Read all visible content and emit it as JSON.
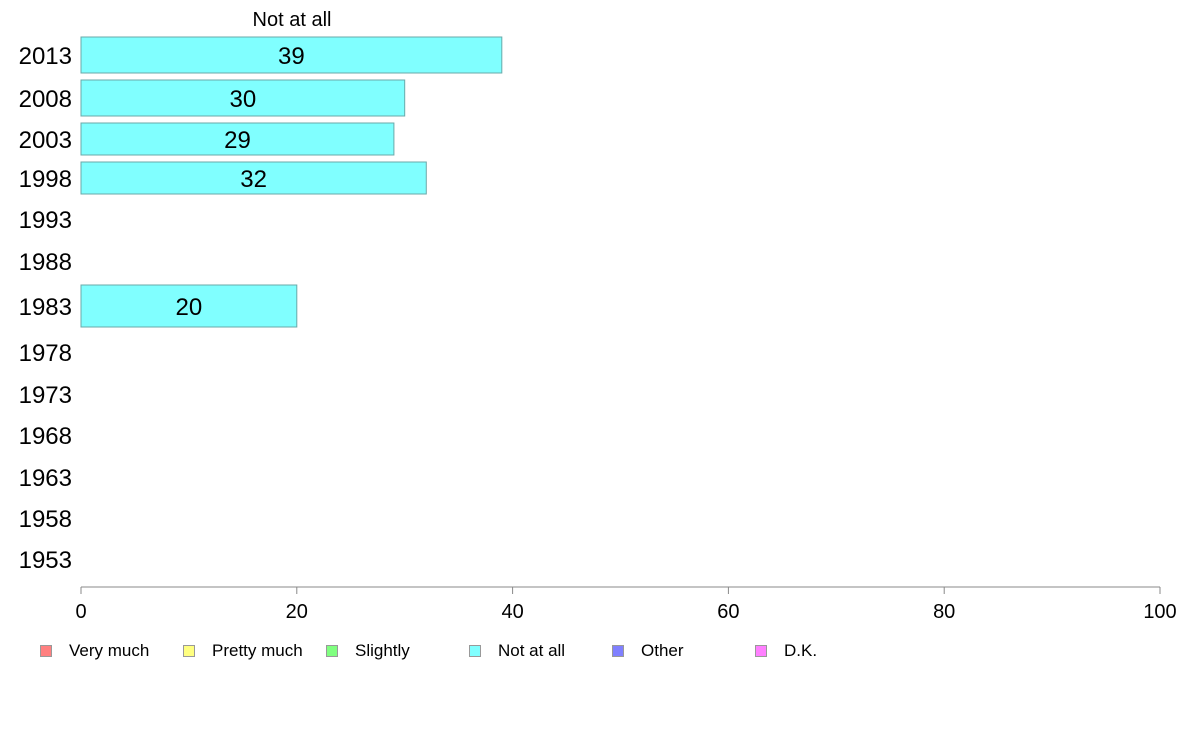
{
  "chart_data": {
    "type": "bar",
    "orientation": "horizontal",
    "series_title": "Not at all",
    "categories": [
      "2013",
      "2008",
      "2003",
      "1998",
      "1993",
      "1988",
      "1983",
      "1978",
      "1973",
      "1968",
      "1963",
      "1958",
      "1953"
    ],
    "values": [
      39,
      30,
      29,
      32,
      null,
      null,
      20,
      null,
      null,
      null,
      null,
      null,
      null
    ],
    "data_labels": [
      "39",
      "30",
      "29",
      "32",
      "",
      "",
      "20",
      "",
      "",
      "",
      "",
      "",
      ""
    ],
    "xlim": [
      0,
      100
    ],
    "xticks": [
      0,
      20,
      40,
      60,
      80,
      100
    ],
    "grid": false,
    "legend_placement": "bottom",
    "bar_color": "#80ffff",
    "legend": [
      {
        "label": "Very much",
        "color": "#ff8080"
      },
      {
        "label": "Pretty much",
        "color": "#ffff80"
      },
      {
        "label": "Slightly",
        "color": "#80ff80"
      },
      {
        "label": "Not at all",
        "color": "#80ffff"
      },
      {
        "label": "Other",
        "color": "#8080ff"
      },
      {
        "label": "D.K.",
        "color": "#ff80ff"
      }
    ]
  }
}
